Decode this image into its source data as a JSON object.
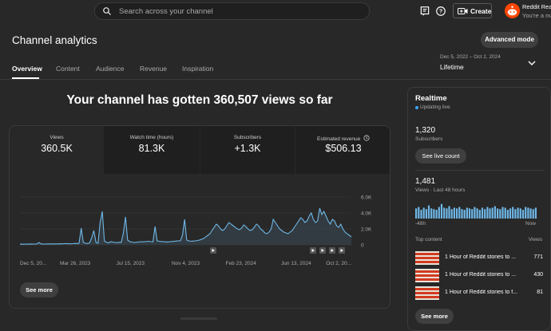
{
  "search": {
    "placeholder": "Search across your channel"
  },
  "topbar": {
    "create_label": "Create",
    "account_name": "Reddit Read",
    "account_sub": "You're a ma"
  },
  "page": {
    "title": "Channel analytics",
    "advanced_label": "Advanced mode"
  },
  "tabs": [
    {
      "label": "Overview"
    },
    {
      "label": "Content"
    },
    {
      "label": "Audience"
    },
    {
      "label": "Revenue"
    },
    {
      "label": "Inspiration"
    }
  ],
  "date": {
    "range": "Dec 5, 2022 – Oct 2, 2024",
    "label": "Lifetime"
  },
  "headline": "Your channel has gotten 360,507 views so far",
  "metrics": [
    {
      "label": "Views",
      "value": "360.5K"
    },
    {
      "label": "Watch time (hours)",
      "value": "81.3K"
    },
    {
      "label": "Subscribers",
      "value": "+1.3K"
    },
    {
      "label": "Estimated revenue",
      "value": "$506.13"
    }
  ],
  "see_more_label": "See more",
  "colors": {
    "accent": "#3ea6ff",
    "line": "#6fb8e8",
    "bg": "#282828",
    "tile": "#1f1f1f"
  },
  "chart_data": {
    "type": "line",
    "title": "Views",
    "x_labels": [
      "Dec 5, 20...",
      "Mar 26, 2023",
      "Jul 15, 2023",
      "Nov 4, 2023",
      "Feb 23, 2024",
      "Jun 13, 2024",
      "Oct 2, 20..."
    ],
    "y_labels": [
      "6.0K",
      "4.0K",
      "2.0K",
      "0"
    ],
    "ylim": [
      0,
      6000
    ],
    "grid": true,
    "values": [
      80,
      90,
      85,
      100,
      95,
      110,
      90,
      100,
      105,
      300,
      120,
      110,
      100,
      115,
      120,
      110,
      130,
      125,
      120,
      140,
      135,
      150,
      160,
      140,
      130,
      150,
      180,
      160,
      200,
      2100,
      300,
      200,
      180,
      250,
      900,
      1800,
      300,
      200,
      2800,
      4200,
      500,
      300,
      250,
      400,
      350,
      300,
      280,
      320,
      300,
      1500,
      3500,
      600,
      400,
      350,
      300,
      320,
      350,
      400,
      380,
      400,
      420,
      450,
      400,
      380,
      2300,
      500,
      450,
      420,
      400,
      380,
      360,
      400,
      420,
      450,
      480,
      500,
      520,
      1200,
      3200,
      600,
      500,
      450,
      480,
      500,
      550,
      600,
      700,
      800,
      1000,
      1200,
      1400,
      1800,
      2200,
      2600,
      2400,
      2000,
      1800,
      2000,
      2400,
      2800,
      2600,
      2400,
      2200,
      2000,
      1900,
      2100,
      2500,
      2300,
      2000,
      1800,
      1900,
      2200,
      2600,
      2400,
      2000,
      1800,
      1500,
      1400,
      1600,
      2000,
      3200,
      2800,
      2400,
      2000,
      1800,
      1600,
      1500,
      1400,
      1600,
      1800,
      2200,
      2600,
      3000,
      3400,
      3200,
      2800,
      3000,
      3600,
      4000,
      3200,
      2800,
      3000,
      4600,
      3800,
      4200,
      3600,
      3000,
      2600,
      3200,
      3000,
      2400,
      2200,
      2600,
      2000,
      1600,
      1400,
      1200,
      1000
    ]
  },
  "realtime": {
    "title": "Realtime",
    "updating": "Updating live",
    "subs_value": "1,320",
    "subs_label": "Subscribers",
    "live_button": "See live count",
    "views_value": "1,481",
    "views_label": "Views · Last 48 hours",
    "axis_start": "-48h",
    "axis_end": "Now",
    "top_content_label": "Top content",
    "views_header": "Views",
    "bars": [
      14,
      16,
      12,
      15,
      13,
      18,
      14,
      13,
      12,
      16,
      20,
      15,
      14,
      17,
      13,
      15,
      14,
      16,
      13,
      12,
      15,
      14,
      13,
      16,
      14,
      12,
      15,
      13,
      16,
      14,
      15,
      17,
      14,
      13,
      16,
      15,
      12,
      14,
      16,
      13,
      15,
      14,
      12,
      16,
      15,
      14,
      13,
      15
    ],
    "top_content": [
      {
        "title": "1 Hour of Reddit stories to ...",
        "views": "771"
      },
      {
        "title": "1 Hour of Reddit stories to ...",
        "views": "430"
      },
      {
        "title": "1 Hour of Reddit stories to f...",
        "views": "81"
      }
    ],
    "see_more_label": "See more"
  }
}
